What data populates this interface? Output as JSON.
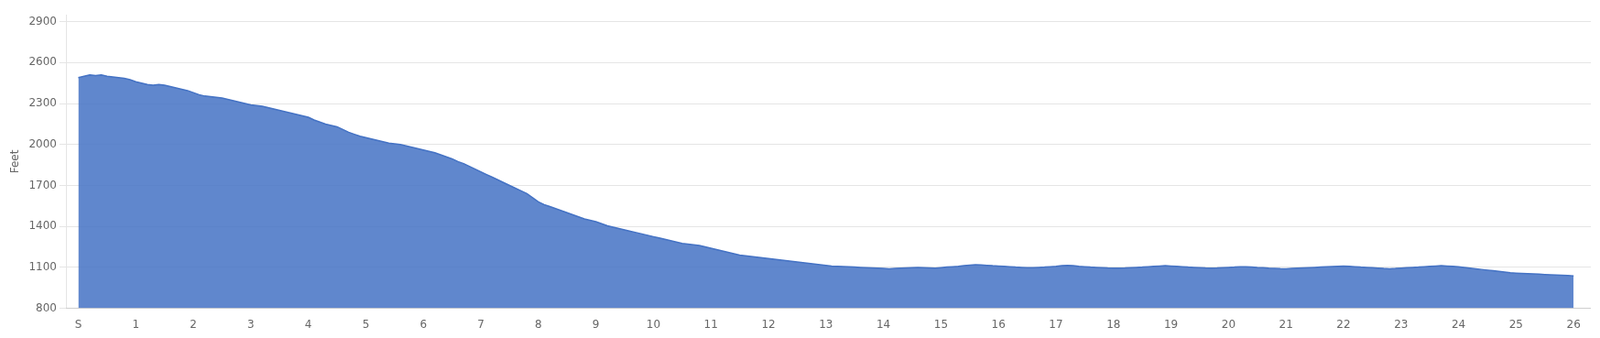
{
  "chart_data": {
    "type": "area",
    "ylabel": "Feet",
    "color": "#4472C4",
    "grid": "y",
    "xlim": [
      -0.2,
      26.3
    ],
    "xticks": [
      {
        "value": 0,
        "label": "S"
      },
      1,
      2,
      3,
      4,
      5,
      6,
      7,
      8,
      9,
      10,
      11,
      12,
      13,
      14,
      15,
      16,
      17,
      18,
      19,
      20,
      21,
      22,
      23,
      24,
      25,
      26
    ],
    "ylim": [
      800,
      2950
    ],
    "yticks": [
      800,
      1100,
      1400,
      1700,
      2000,
      2300,
      2600,
      2900
    ],
    "x": [
      0.0,
      0.1,
      0.2,
      0.3,
      0.4,
      0.5,
      0.6,
      0.7,
      0.8,
      0.9,
      1.0,
      1.1,
      1.2,
      1.3,
      1.4,
      1.5,
      1.6,
      1.7,
      1.8,
      1.9,
      2.0,
      2.1,
      2.2,
      2.3,
      2.4,
      2.5,
      2.6,
      2.7,
      2.8,
      2.9,
      3.0,
      3.1,
      3.2,
      3.3,
      3.4,
      3.5,
      3.6,
      3.7,
      3.8,
      3.9,
      4.0,
      4.1,
      4.2,
      4.3,
      4.4,
      4.5,
      4.6,
      4.7,
      4.8,
      4.9,
      5.0,
      5.1,
      5.2,
      5.3,
      5.4,
      5.5,
      5.6,
      5.7,
      5.8,
      5.9,
      6.0,
      6.1,
      6.2,
      6.3,
      6.4,
      6.5,
      6.6,
      6.7,
      6.8,
      6.9,
      7.0,
      7.1,
      7.2,
      7.3,
      7.4,
      7.5,
      7.6,
      7.7,
      7.8,
      7.9,
      8.0,
      8.1,
      8.2,
      8.3,
      8.4,
      8.5,
      8.6,
      8.7,
      8.8,
      8.9,
      9.0,
      9.1,
      9.2,
      9.3,
      9.4,
      9.5,
      9.6,
      9.7,
      9.8,
      9.9,
      10.0,
      10.1,
      10.2,
      10.3,
      10.4,
      10.5,
      10.6,
      10.7,
      10.8,
      10.9,
      11.0,
      11.1,
      11.2,
      11.3,
      11.4,
      11.5,
      11.6,
      11.7,
      11.8,
      11.9,
      12.0,
      12.1,
      12.2,
      12.3,
      12.4,
      12.5,
      12.6,
      12.7,
      12.8,
      12.9,
      13.0,
      13.1,
      13.2,
      13.3,
      13.4,
      13.5,
      13.6,
      13.7,
      13.8,
      13.9,
      14.0,
      14.1,
      14.2,
      14.3,
      14.4,
      14.5,
      14.6,
      14.7,
      14.8,
      14.9,
      15.0,
      15.1,
      15.2,
      15.3,
      15.4,
      15.5,
      15.6,
      15.7,
      15.8,
      15.9,
      16.0,
      16.1,
      16.2,
      16.3,
      16.4,
      16.5,
      16.6,
      16.7,
      16.8,
      16.9,
      17.0,
      17.1,
      17.2,
      17.3,
      17.4,
      17.5,
      17.6,
      17.7,
      17.8,
      17.9,
      18.0,
      18.1,
      18.2,
      18.3,
      18.4,
      18.5,
      18.6,
      18.7,
      18.8,
      18.9,
      19.0,
      19.1,
      19.2,
      19.3,
      19.4,
      19.5,
      19.6,
      19.7,
      19.8,
      19.9,
      20.0,
      20.1,
      20.2,
      20.3,
      20.4,
      20.5,
      20.6,
      20.7,
      20.8,
      20.9,
      21.0,
      21.1,
      21.2,
      21.3,
      21.4,
      21.5,
      21.6,
      21.7,
      21.8,
      21.9,
      22.0,
      22.1,
      22.2,
      22.3,
      22.4,
      22.5,
      22.6,
      22.7,
      22.8,
      22.9,
      23.0,
      23.1,
      23.2,
      23.3,
      23.4,
      23.5,
      23.6,
      23.7,
      23.8,
      23.9,
      24.0,
      24.1,
      24.2,
      24.3,
      24.4,
      24.5,
      24.6,
      24.7,
      24.8,
      24.9,
      25.0,
      25.1,
      25.2,
      25.3,
      25.4,
      25.5,
      25.6,
      25.7,
      25.8,
      25.9,
      26.0
    ],
    "values": [
      2490,
      2500,
      2510,
      2505,
      2510,
      2500,
      2495,
      2490,
      2485,
      2475,
      2460,
      2450,
      2440,
      2435,
      2440,
      2435,
      2425,
      2415,
      2405,
      2395,
      2380,
      2365,
      2355,
      2350,
      2345,
      2340,
      2330,
      2320,
      2310,
      2300,
      2290,
      2285,
      2280,
      2270,
      2260,
      2250,
      2240,
      2230,
      2220,
      2210,
      2200,
      2180,
      2165,
      2150,
      2140,
      2130,
      2110,
      2090,
      2075,
      2060,
      2050,
      2040,
      2030,
      2020,
      2010,
      2005,
      2000,
      1990,
      1980,
      1970,
      1960,
      1950,
      1940,
      1925,
      1910,
      1895,
      1875,
      1860,
      1840,
      1820,
      1800,
      1780,
      1760,
      1740,
      1720,
      1700,
      1680,
      1660,
      1640,
      1610,
      1580,
      1560,
      1545,
      1530,
      1515,
      1500,
      1485,
      1470,
      1455,
      1445,
      1435,
      1420,
      1405,
      1395,
      1385,
      1375,
      1365,
      1355,
      1345,
      1335,
      1325,
      1315,
      1305,
      1295,
      1285,
      1275,
      1270,
      1265,
      1260,
      1250,
      1240,
      1230,
      1220,
      1210,
      1200,
      1190,
      1185,
      1180,
      1175,
      1170,
      1165,
      1160,
      1155,
      1150,
      1145,
      1140,
      1135,
      1130,
      1125,
      1120,
      1115,
      1110,
      1108,
      1106,
      1104,
      1102,
      1100,
      1098,
      1096,
      1094,
      1092,
      1090,
      1092,
      1094,
      1096,
      1098,
      1100,
      1098,
      1096,
      1094,
      1098,
      1102,
      1105,
      1108,
      1112,
      1116,
      1120,
      1118,
      1115,
      1112,
      1110,
      1108,
      1105,
      1102,
      1100,
      1098,
      1098,
      1100,
      1102,
      1105,
      1108,
      1112,
      1115,
      1112,
      1108,
      1105,
      1102,
      1100,
      1098,
      1096,
      1095,
      1095,
      1096,
      1098,
      1100,
      1102,
      1105,
      1108,
      1110,
      1112,
      1110,
      1108,
      1105,
      1102,
      1100,
      1098,
      1096,
      1095,
      1096,
      1098,
      1100,
      1102,
      1105,
      1105,
      1103,
      1100,
      1098,
      1095,
      1093,
      1091,
      1090,
      1092,
      1094,
      1096,
      1098,
      1100,
      1102,
      1104,
      1106,
      1108,
      1110,
      1108,
      1105,
      1102,
      1100,
      1098,
      1095,
      1092,
      1090,
      1092,
      1095,
      1098,
      1100,
      1102,
      1105,
      1108,
      1110,
      1112,
      1110,
      1108,
      1105,
      1100,
      1095,
      1090,
      1085,
      1080,
      1075,
      1070,
      1065,
      1060,
      1058,
      1056,
      1054,
      1052,
      1050,
      1048,
      1046,
      1044,
      1042,
      1040,
      1038
    ]
  }
}
